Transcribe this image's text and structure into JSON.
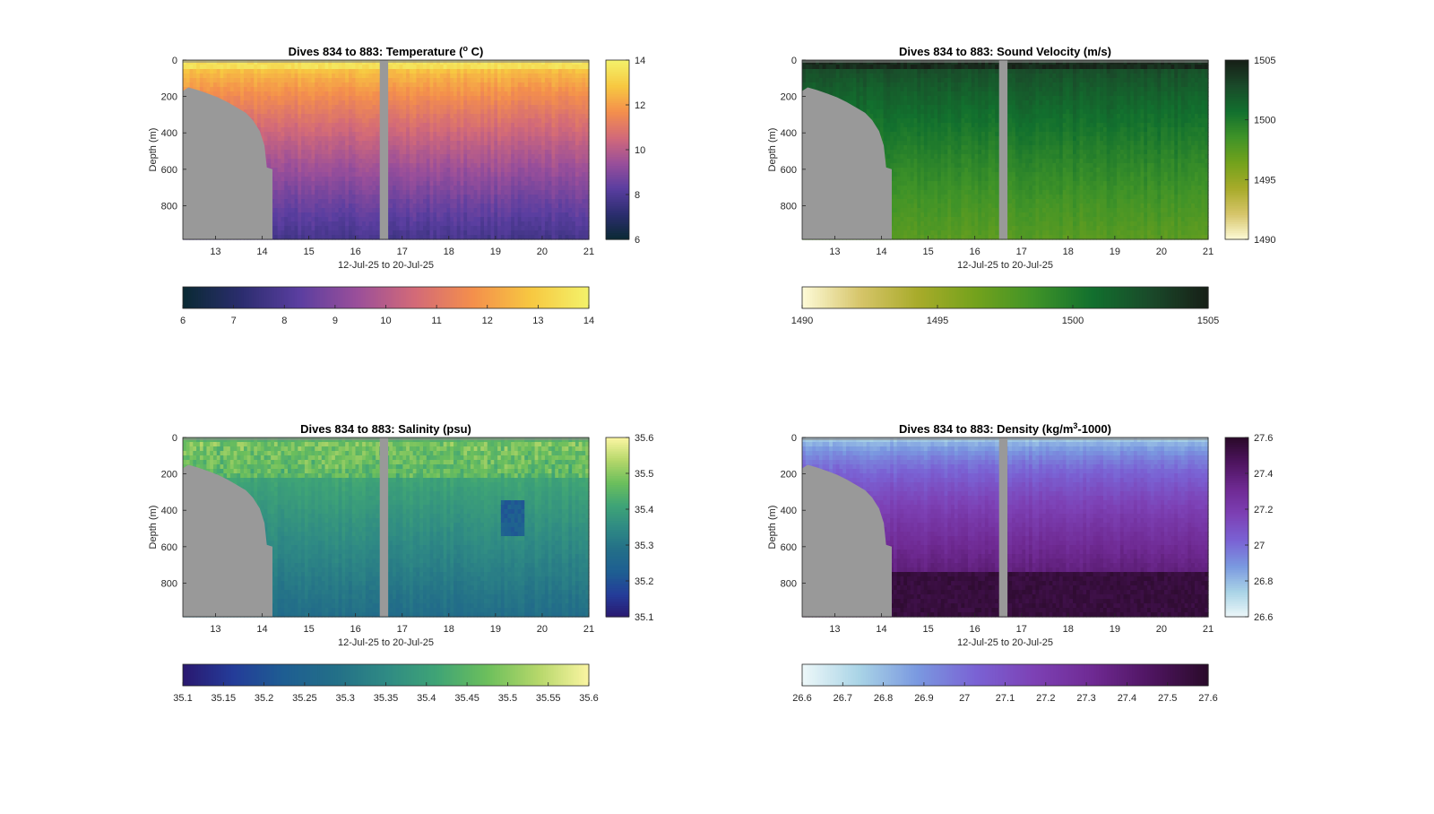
{
  "colors": {
    "background": "#ffffff",
    "seafloor": "#999999",
    "gap": "#999999",
    "axis": "#262626",
    "temperature_colormap": [
      "#0a2a33",
      "#2b2d6e",
      "#5a3ea0",
      "#9a4f9a",
      "#d36a78",
      "#f48f4c",
      "#f7c841",
      "#f3f26a"
    ],
    "sound_velocity_colormap": [
      "#fefbd8",
      "#d6c56a",
      "#a8ab2a",
      "#73a21c",
      "#3f9328",
      "#12702e",
      "#1a4a2a",
      "#171f17"
    ],
    "salinity_colormap": [
      "#2a1870",
      "#243c99",
      "#1e5e92",
      "#236f88",
      "#2f8a84",
      "#3fa476",
      "#6cbf5c",
      "#b5d76a",
      "#fbf5a2"
    ],
    "density_colormap": [
      "#eef8f9",
      "#a8d3e6",
      "#7a98e0",
      "#7a62d4",
      "#7d41b5",
      "#6f2a93",
      "#4f1561",
      "#2a0a2a"
    ]
  },
  "chart_data": [
    {
      "type": "heatmap",
      "title_prefix": "Dives 834 to 883: Temperature (",
      "title_sup": "o",
      "title_suffix": " C)",
      "xlabel": "12-Jul-25 to 20-Jul-25",
      "ylabel": "Depth (m)",
      "x_ticks": [
        "13",
        "14",
        "15",
        "16",
        "17",
        "18",
        "19",
        "20",
        "21"
      ],
      "y_ticks": [
        "0",
        "200",
        "400",
        "600",
        "800"
      ],
      "xlim": [
        12.3,
        21.0
      ],
      "ylim": [
        0,
        985
      ],
      "colorbar_ticks": [
        "6",
        "8",
        "10",
        "12",
        "14"
      ],
      "horizontal_colorbar_ticks": [
        "6",
        "7",
        "8",
        "9",
        "10",
        "11",
        "12",
        "13",
        "14"
      ],
      "clim": [
        6,
        14
      ],
      "surface_value": 13.5,
      "deep_value": 7.8,
      "grid": false
    },
    {
      "type": "heatmap",
      "title_prefix": "Dives 834 to 883: Sound Velocity (m/s)",
      "title_sup": "",
      "title_suffix": "",
      "xlabel": "12-Jul-25 to 20-Jul-25",
      "ylabel": "Depth (m)",
      "x_ticks": [
        "13",
        "14",
        "15",
        "16",
        "17",
        "18",
        "19",
        "20",
        "21"
      ],
      "y_ticks": [
        "0",
        "200",
        "400",
        "600",
        "800"
      ],
      "xlim": [
        12.3,
        21.0
      ],
      "ylim": [
        0,
        985
      ],
      "colorbar_ticks": [
        "1490",
        "1495",
        "1500",
        "1505"
      ],
      "horizontal_colorbar_ticks": [
        "1490",
        "1495",
        "1500",
        "1505"
      ],
      "clim": [
        1490,
        1505
      ],
      "surface_value": 1503.5,
      "deep_value": 1497.5,
      "grid": false
    },
    {
      "type": "heatmap",
      "title_prefix": "Dives 834 to 883: Salinity (psu)",
      "title_sup": "",
      "title_suffix": "",
      "xlabel": "12-Jul-25 to 20-Jul-25",
      "ylabel": "Depth (m)",
      "x_ticks": [
        "13",
        "14",
        "15",
        "16",
        "17",
        "18",
        "19",
        "20",
        "21"
      ],
      "y_ticks": [
        "0",
        "200",
        "400",
        "600",
        "800"
      ],
      "xlim": [
        12.3,
        21.0
      ],
      "ylim": [
        0,
        985
      ],
      "colorbar_ticks": [
        "35.1",
        "35.2",
        "35.3",
        "35.4",
        "35.5",
        "35.6"
      ],
      "horizontal_colorbar_ticks": [
        "35.1",
        "35.15",
        "35.2",
        "35.25",
        "35.3",
        "35.35",
        "35.4",
        "35.45",
        "35.5",
        "35.55",
        "35.6"
      ],
      "clim": [
        35.1,
        35.6
      ],
      "surface_value": 35.45,
      "deep_value": 35.28,
      "grid": false
    },
    {
      "type": "heatmap",
      "title_prefix": "Dives 834 to 883: Density (kg/m",
      "title_sup": "3",
      "title_suffix": "-1000)",
      "xlabel": "12-Jul-25 to 20-Jul-25",
      "ylabel": "Depth (m)",
      "x_ticks": [
        "13",
        "14",
        "15",
        "16",
        "17",
        "18",
        "19",
        "20",
        "21"
      ],
      "y_ticks": [
        "0",
        "200",
        "400",
        "600",
        "800"
      ],
      "xlim": [
        12.3,
        21.0
      ],
      "ylim": [
        0,
        985
      ],
      "colorbar_ticks": [
        "26.6",
        "26.8",
        "27",
        "27.2",
        "27.4",
        "27.6"
      ],
      "horizontal_colorbar_ticks": [
        "26.6",
        "26.7",
        "26.8",
        "26.9",
        "27",
        "27.1",
        "27.2",
        "27.3",
        "27.4",
        "27.5",
        "27.6"
      ],
      "clim": [
        26.6,
        27.6
      ],
      "surface_value": 26.7,
      "deep_value": 27.5,
      "grid": false
    }
  ]
}
